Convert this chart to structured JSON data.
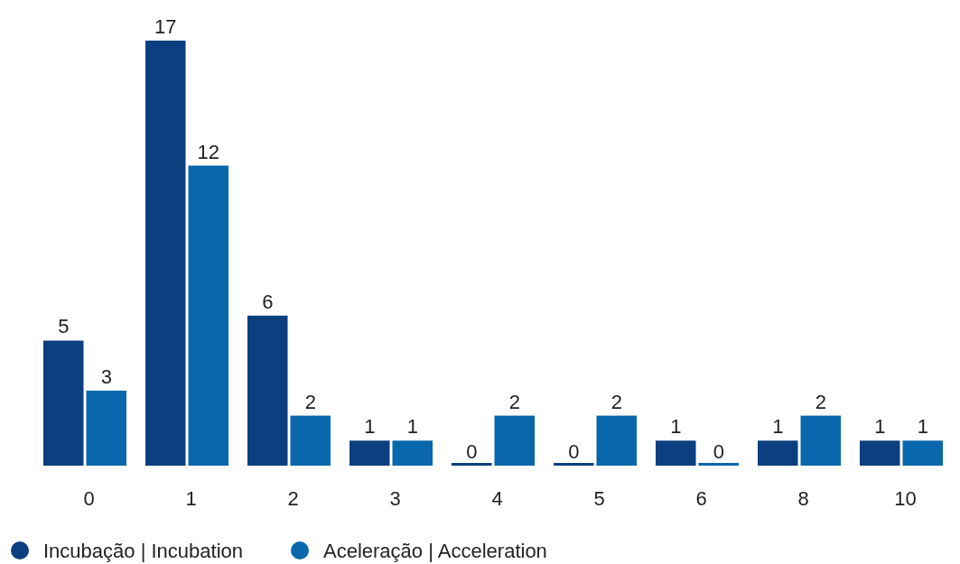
{
  "chart_data": {
    "type": "bar",
    "categories": [
      "0",
      "1",
      "2",
      "3",
      "4",
      "5",
      "6",
      "8",
      "10"
    ],
    "series": [
      {
        "name": "Incubação | Incubation",
        "color": "#0b3f7f",
        "values": [
          5,
          17,
          6,
          1,
          0,
          0,
          1,
          1,
          1
        ]
      },
      {
        "name": "Aceleração | Acceleration",
        "color": "#0868ab",
        "values": [
          3,
          12,
          2,
          1,
          2,
          2,
          0,
          2,
          1
        ]
      }
    ],
    "data_labels": true,
    "legend": "bottom left",
    "tick_labels": "x"
  }
}
